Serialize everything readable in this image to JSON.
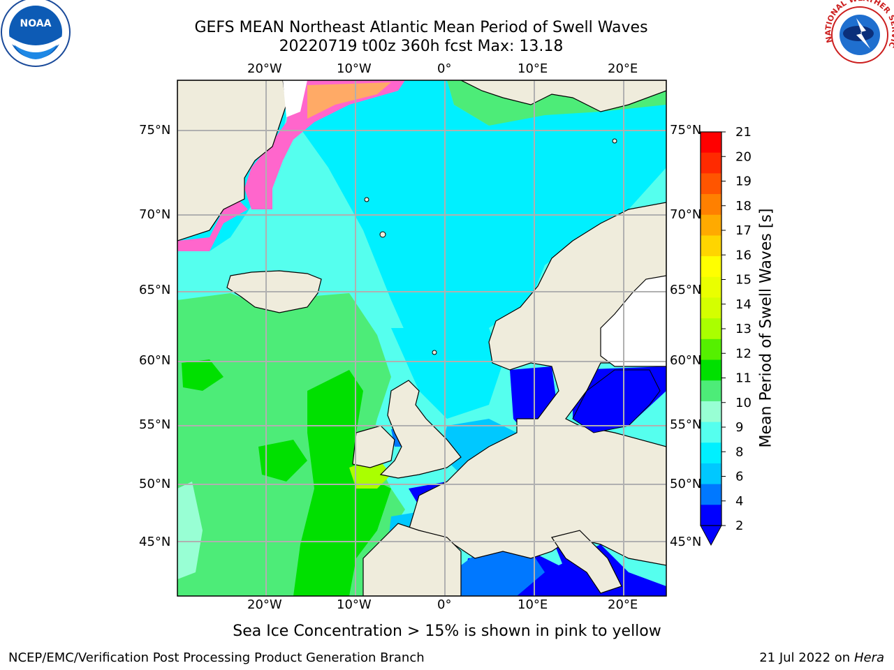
{
  "header": {
    "title_line1": "GEFS MEAN Northeast Atlantic Mean Period of Swell Waves",
    "title_line2": "20220719 t00z 360h fcst   Max: 13.18"
  },
  "map": {
    "lon_labels": [
      "20°W",
      "10°W",
      "0°",
      "10°E",
      "20°E"
    ],
    "lat_labels_left": [
      "75°N",
      "70°N",
      "65°N",
      "60°N",
      "55°N",
      "50°N",
      "45°N"
    ],
    "lat_labels_right": [
      "75°N",
      "70°N",
      "65°N",
      "60°N",
      "55°N",
      "50°N",
      "45°N"
    ],
    "land_color": "#efecdc",
    "grid_color": "#b0b0b0"
  },
  "colorbar": {
    "title": "Mean Period of Swell Waves [s]",
    "ticks": [
      "21",
      "20",
      "19",
      "18",
      "17",
      "16",
      "15",
      "14",
      "13",
      "12",
      "11",
      "10",
      "9",
      "8",
      "6",
      "4",
      "2"
    ],
    "colors": [
      "#ff0000",
      "#ff2a00",
      "#ff5500",
      "#ff8000",
      "#ffaa00",
      "#ffd500",
      "#ffff00",
      "#eaff00",
      "#d4ff00",
      "#aaff00",
      "#55f000",
      "#00e000",
      "#4dec78",
      "#98ffd4",
      "#55ffee",
      "#00f0ff",
      "#00c8ff",
      "#0078ff",
      "#0000ff"
    ]
  },
  "caption": "Sea Ice Concentration > 15% is shown in pink to yellow",
  "footer": {
    "left": "NCEP/EMC/Verification Post Processing Product Generation Branch",
    "right_date": "21 Jul 2022 on ",
    "right_host": "Hera"
  },
  "logos": {
    "noaa_text": "NOAA",
    "nws_text": "NATIONAL WEATHER SERVICE"
  }
}
